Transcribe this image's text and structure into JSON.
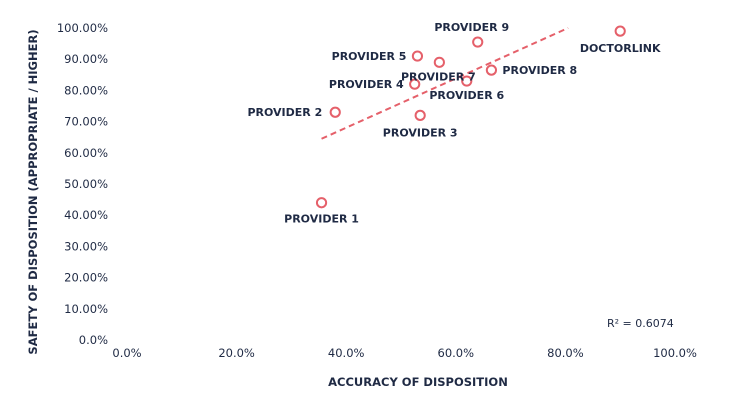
{
  "chart_data": {
    "type": "scatter",
    "xlabel": "ACCURACY OF DISPOSITION",
    "ylabel": "SAFETY OF DISPOSITION (APPROPRIATE / HIGHER)",
    "xlim": [
      0,
      100
    ],
    "ylim": [
      0,
      100
    ],
    "x_ticks": [
      "0.0%",
      "20.0%",
      "40.0%",
      "60.0%",
      "80.0%",
      "100.0%"
    ],
    "y_ticks": [
      "0.0%",
      "10.00%",
      "20.00%",
      "30.00%",
      "40.00%",
      "50.00%",
      "60.00%",
      "70.00%",
      "80.00%",
      "90.00%",
      "100.00%"
    ],
    "grid": false,
    "marker_color": "#e5606a",
    "trendline": {
      "style": "dashed",
      "color": "#e5606a",
      "x": [
        35.5,
        80.5
      ],
      "y": [
        64.5,
        100
      ]
    },
    "r2_label": "R² = 0.6074",
    "points": [
      {
        "label": "PROVIDER 1",
        "x": 35.5,
        "y": 44
      },
      {
        "label": "PROVIDER 2",
        "x": 38,
        "y": 73
      },
      {
        "label": "PROVIDER 3",
        "x": 53.5,
        "y": 72
      },
      {
        "label": "PROVIDER 4",
        "x": 52.5,
        "y": 82
      },
      {
        "label": "PROVIDER 5",
        "x": 53,
        "y": 91
      },
      {
        "label": "PROVIDER 6",
        "x": 62,
        "y": 83
      },
      {
        "label": "PROVIDER 7",
        "x": 57,
        "y": 89
      },
      {
        "label": "PROVIDER 8",
        "x": 66.5,
        "y": 86.5
      },
      {
        "label": "PROVIDER 9",
        "x": 64,
        "y": 95.5
      },
      {
        "label": "DOCTORLINK",
        "x": 90,
        "y": 99
      }
    ]
  }
}
